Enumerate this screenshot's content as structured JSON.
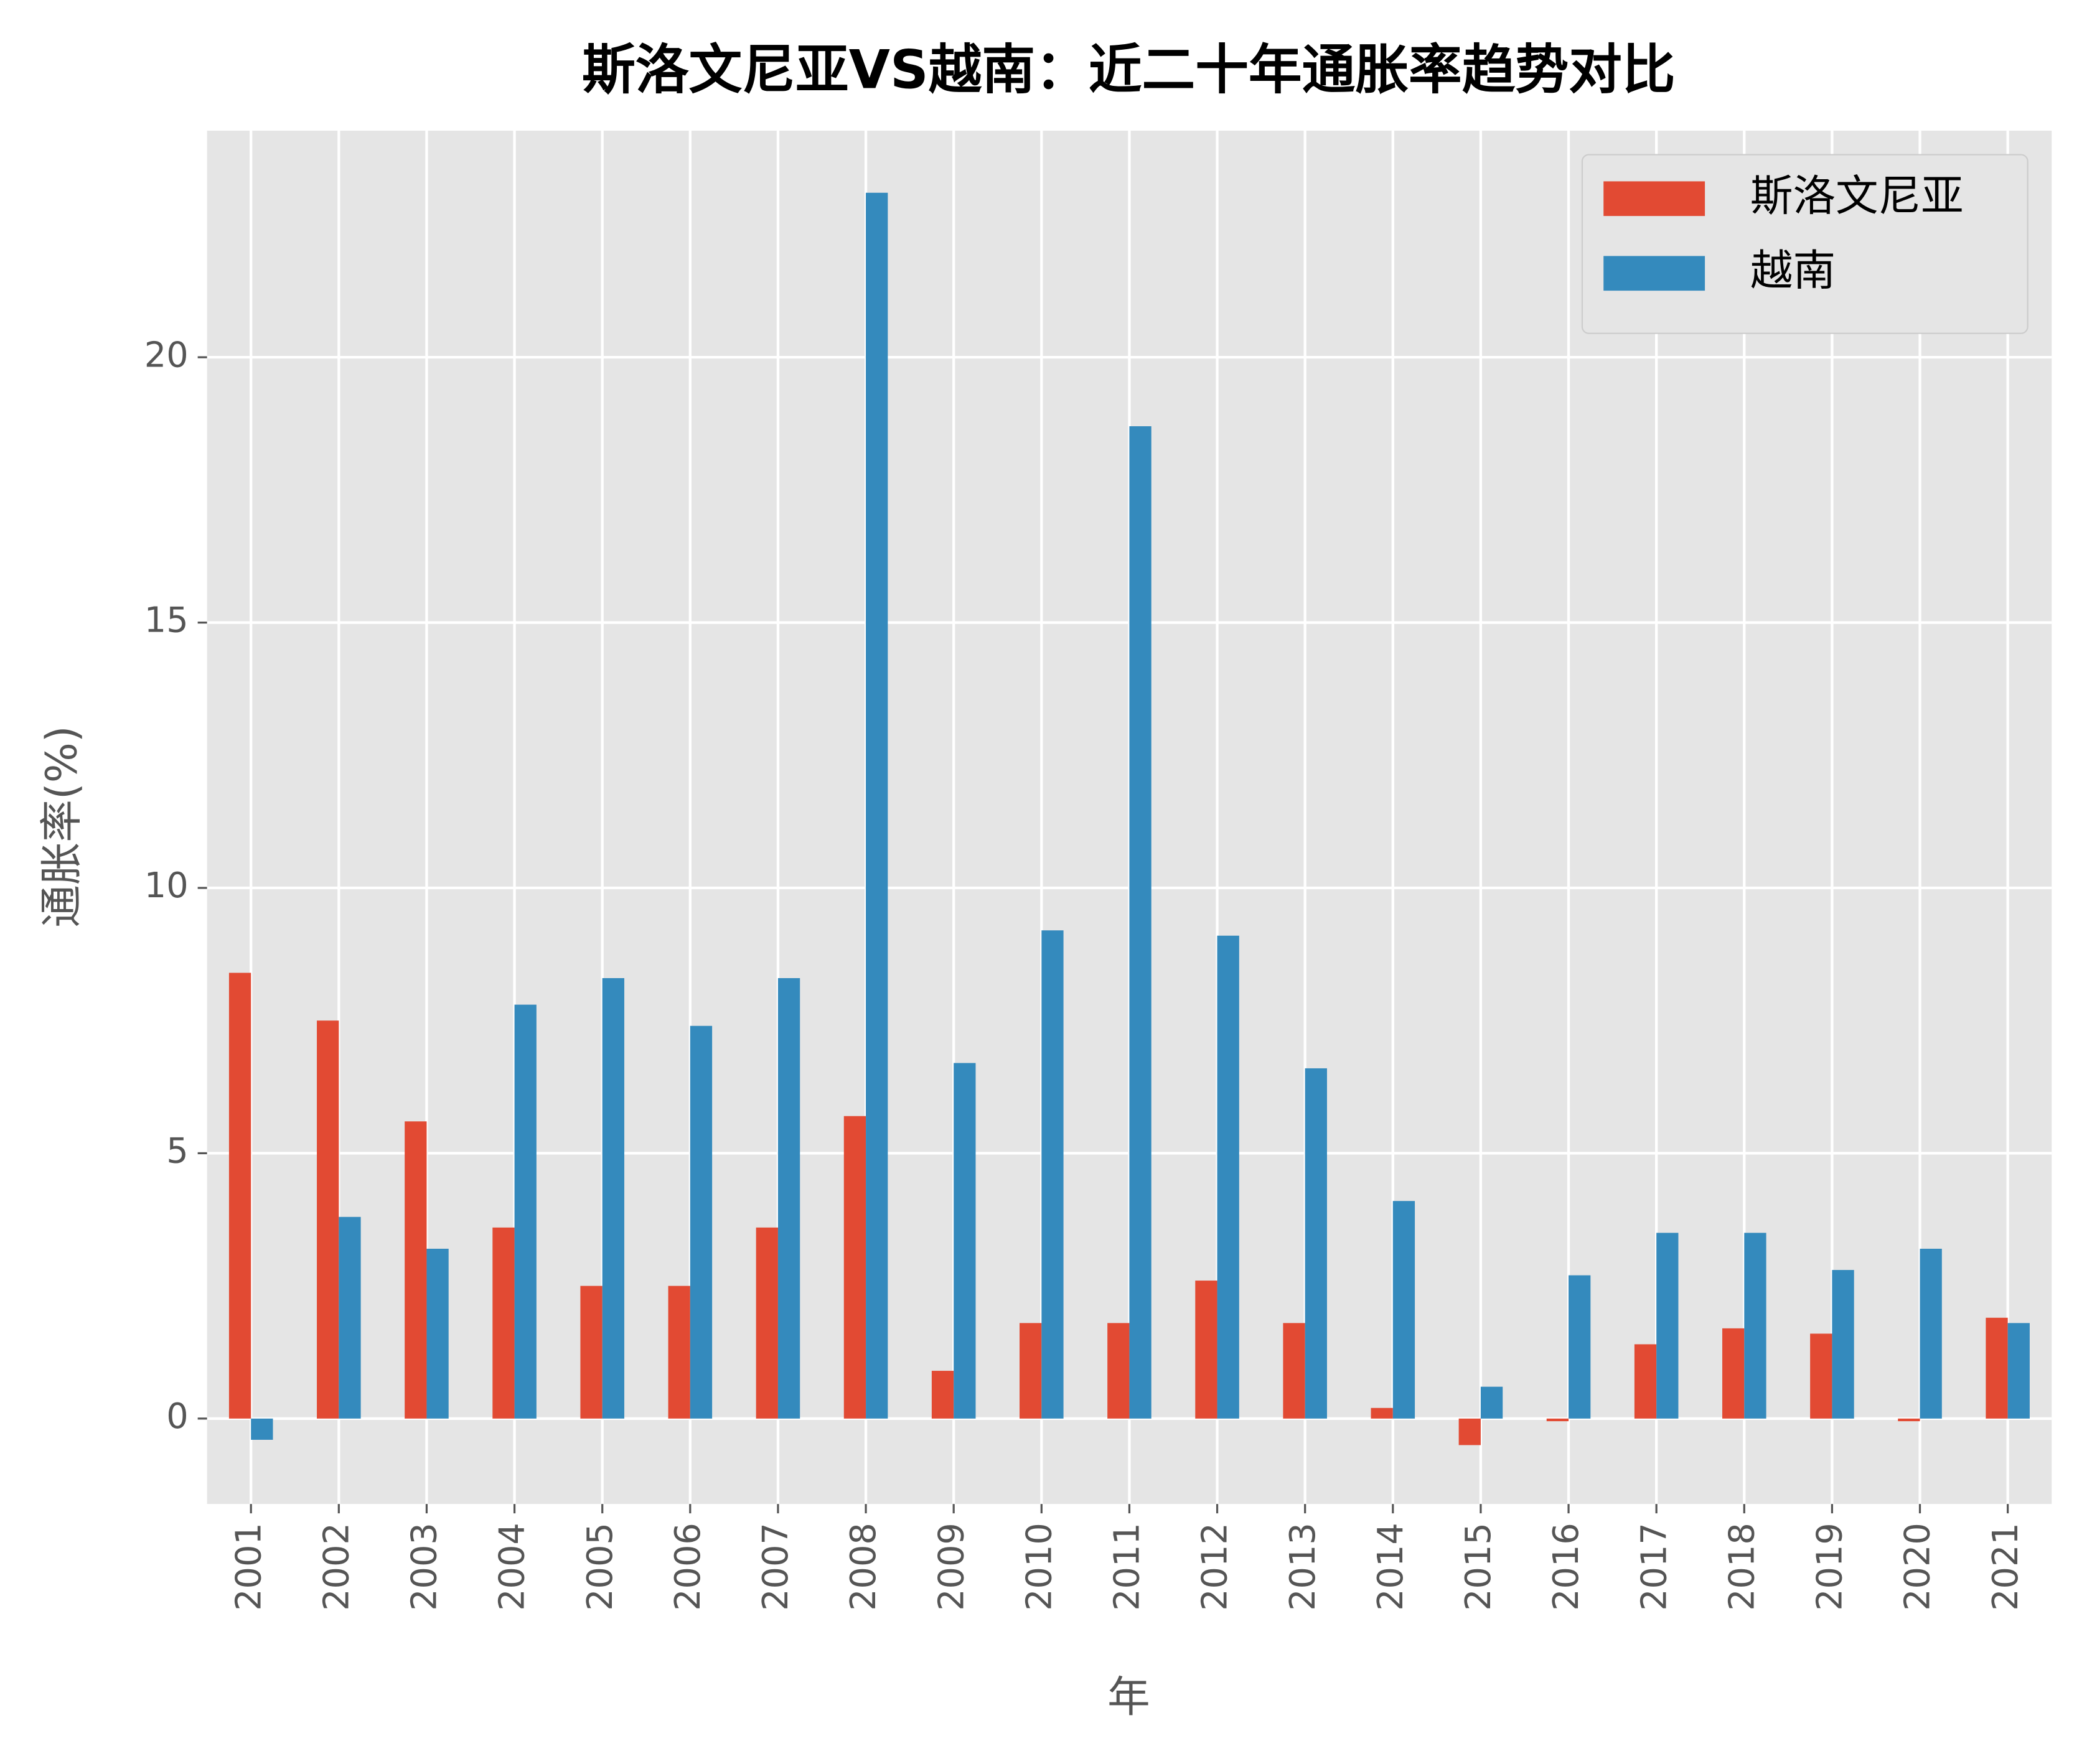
{
  "chart_data": {
    "type": "bar",
    "title": "斯洛文尼亚VS越南：近二十年通胀率趋势对比",
    "x_label": "年",
    "y_label": "通胀率(%)",
    "categories": [
      "2001",
      "2002",
      "2003",
      "2004",
      "2005",
      "2006",
      "2007",
      "2008",
      "2009",
      "2010",
      "2011",
      "2012",
      "2013",
      "2014",
      "2015",
      "2016",
      "2017",
      "2018",
      "2019",
      "2020",
      "2021"
    ],
    "series": [
      {
        "name": "斯洛文尼亚",
        "color": "#E24A33",
        "values": [
          8.4,
          7.5,
          5.6,
          3.6,
          2.5,
          2.5,
          3.6,
          5.7,
          0.9,
          1.8,
          1.8,
          2.6,
          1.8,
          0.2,
          -0.5,
          -0.05,
          1.4,
          1.7,
          1.6,
          -0.05,
          1.9
        ]
      },
      {
        "name": "越南",
        "color": "#348ABD",
        "values": [
          -0.4,
          3.8,
          3.2,
          7.8,
          8.3,
          7.4,
          8.3,
          23.1,
          6.7,
          9.2,
          18.7,
          9.1,
          6.6,
          4.1,
          0.6,
          2.7,
          3.5,
          3.5,
          2.8,
          3.2,
          1.8
        ]
      }
    ],
    "ylim": [
      -1.61,
      24.27
    ],
    "yticks": [
      0,
      5,
      10,
      15,
      20
    ],
    "grid": true,
    "legend": "upper right"
  }
}
